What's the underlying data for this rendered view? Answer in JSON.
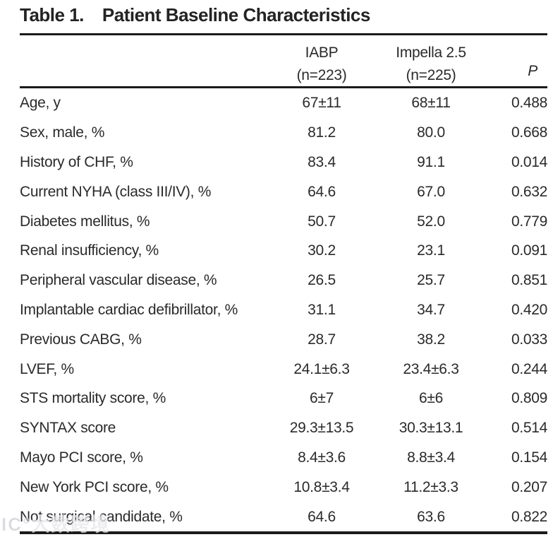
{
  "title": {
    "label": "Table 1.",
    "text": "Patient Baseline Characteristics"
  },
  "table": {
    "header": {
      "col1": {
        "line1": "IABP",
        "line2": "(n=223)"
      },
      "col2": {
        "line1": "Impella 2.5",
        "line2": "(n=225)"
      },
      "p_label": "P"
    },
    "rows": [
      {
        "label": "Age, y",
        "iabp": "67±11",
        "impella": "68±11",
        "p": "0.488"
      },
      {
        "label": "Sex, male, %",
        "iabp": "81.2",
        "impella": "80.0",
        "p": "0.668"
      },
      {
        "label": "History of CHF, %",
        "iabp": "83.4",
        "impella": "91.1",
        "p": "0.014"
      },
      {
        "label": "Current NYHA (class III/IV), %",
        "iabp": "64.6",
        "impella": "67.0",
        "p": "0.632"
      },
      {
        "label": "Diabetes mellitus, %",
        "iabp": "50.7",
        "impella": "52.0",
        "p": "0.779"
      },
      {
        "label": "Renal insufficiency, %",
        "iabp": "30.2",
        "impella": "23.1",
        "p": "0.091"
      },
      {
        "label": "Peripheral vascular disease, %",
        "iabp": "26.5",
        "impella": "25.7",
        "p": "0.851"
      },
      {
        "label": "Implantable cardiac defibrillator, %",
        "iabp": "31.1",
        "impella": "34.7",
        "p": "0.420"
      },
      {
        "label": "Previous CABG, %",
        "iabp": "28.7",
        "impella": "38.2",
        "p": "0.033"
      },
      {
        "label": "LVEF, %",
        "iabp": "24.1±6.3",
        "impella": "23.4±6.3",
        "p": "0.244"
      },
      {
        "label": "STS mortality score, %",
        "iabp": "6±7",
        "impella": "6±6",
        "p": "0.809"
      },
      {
        "label": "SYNTAX score",
        "iabp": "29.3±13.5",
        "impella": "30.3±13.1",
        "p": "0.514"
      },
      {
        "label": "Mayo PCI score, %",
        "iabp": "8.4±3.6",
        "impella": "8.8±3.4",
        "p": "0.154"
      },
      {
        "label": "New York PCI score, %",
        "iabp": "10.8±3.4",
        "impella": "11.2±3.3",
        "p": "0.207"
      },
      {
        "label": "Not surgical candidate, %",
        "iabp": "64.6",
        "impella": "63.6",
        "p": "0.822"
      }
    ]
  },
  "watermark": {
    "text": "IC°大数跨境"
  },
  "colors": {
    "text": "#2a2a2d",
    "rule": "#1b1b1d",
    "watermark": "#b7b7c2"
  }
}
